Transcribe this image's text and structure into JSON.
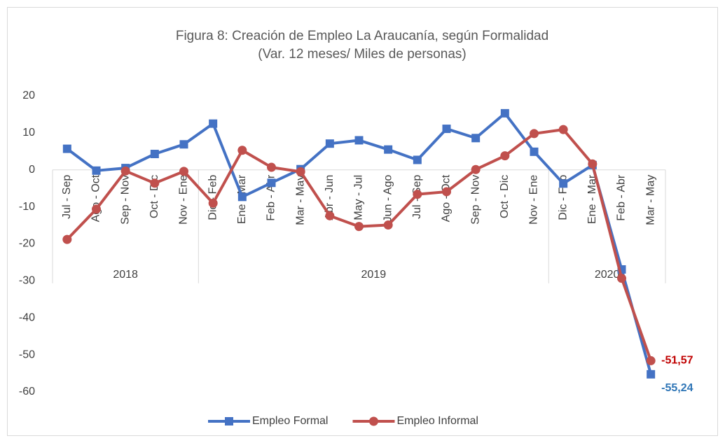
{
  "chart_data": {
    "type": "line",
    "title": "Figura 8: Creación de Empleo La Araucanía, según Formalidad",
    "subtitle": "(Var. 12 meses/ Miles de personas)",
    "categories": [
      "Jul - Sep",
      "Ago - Oct",
      "Sep - Nov",
      "Oct - Dic",
      "Nov - Ene",
      "Dic - Feb",
      "Ene - Mar",
      "Feb - Abr",
      "Mar - May",
      "Abr - Jun",
      "May - Jul",
      "Jun - Ago",
      "Jul - Sep",
      "Ago - Oct",
      "Sep - Nov",
      "Oct - Dic",
      "Nov - Ene",
      "Dic - Feb",
      "Ene - Mar",
      "Feb - Abr",
      "Mar - May"
    ],
    "groups": [
      {
        "label": "2018",
        "count": 5
      },
      {
        "label": "2019",
        "count": 12
      },
      {
        "label": "2020",
        "count": 4
      }
    ],
    "series": [
      {
        "name": "Empleo Formal",
        "color": "#4472c4",
        "marker": "square",
        "values": [
          5.7,
          -0.2,
          0.5,
          4.3,
          6.9,
          12.5,
          -7.3,
          -3.5,
          0.2,
          7.1,
          8.0,
          5.5,
          2.7,
          11.1,
          8.6,
          15.3,
          4.9,
          -3.7,
          1.3,
          -26.9,
          -55.24
        ],
        "value_labels": [
          null,
          null,
          null,
          null,
          null,
          null,
          null,
          null,
          null,
          null,
          null,
          null,
          null,
          null,
          null,
          null,
          null,
          null,
          null,
          null,
          "-55,24"
        ]
      },
      {
        "name": "Empleo Informal",
        "color": "#c0504d",
        "marker": "circle",
        "values": [
          -18.8,
          -10.6,
          -0.3,
          -3.6,
          -0.4,
          -9.0,
          5.3,
          0.7,
          -0.5,
          -12.4,
          -15.3,
          -14.9,
          -6.6,
          -5.9,
          0.1,
          3.8,
          9.8,
          10.9,
          1.6,
          -29.3,
          -51.57
        ],
        "value_labels": [
          null,
          null,
          null,
          null,
          null,
          null,
          null,
          null,
          null,
          null,
          null,
          null,
          null,
          null,
          null,
          null,
          null,
          null,
          null,
          null,
          "-51,57"
        ]
      }
    ],
    "ylim": [
      -60,
      20
    ],
    "yticks": [
      20,
      10,
      0,
      -10,
      -20,
      -30,
      -40,
      -50,
      -60
    ],
    "grid": false,
    "legend": "bottom"
  }
}
